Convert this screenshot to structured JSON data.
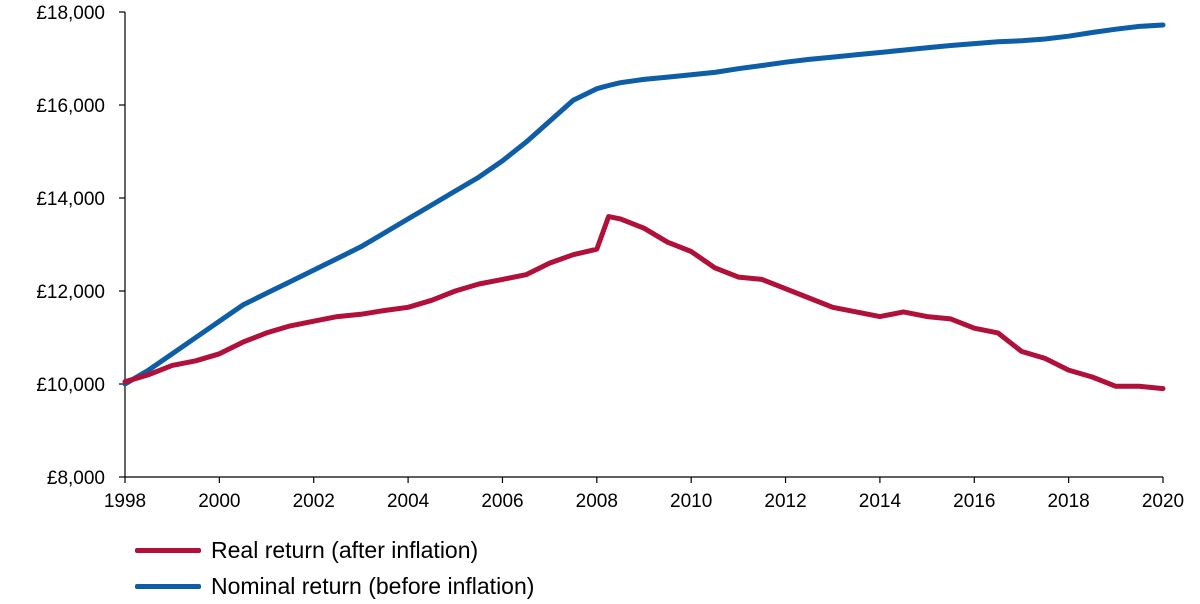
{
  "chart_data": {
    "type": "line",
    "title": "",
    "xlabel": "",
    "ylabel": "",
    "xlim": [
      1998,
      2020
    ],
    "ylim": [
      8000,
      18000
    ],
    "grid": false,
    "legend_position": "bottom-left",
    "x_ticks": [
      "1998",
      "2000",
      "2002",
      "2004",
      "2006",
      "2008",
      "2010",
      "2012",
      "2014",
      "2016",
      "2018",
      "2020"
    ],
    "y_ticks": [
      "£8,000",
      "£10,000",
      "£12,000",
      "£14,000",
      "£16,000",
      "£18,000"
    ],
    "x_tick_values": [
      1998,
      2000,
      2002,
      2004,
      2006,
      2008,
      2010,
      2012,
      2014,
      2016,
      2018,
      2020
    ],
    "y_tick_values": [
      8000,
      10000,
      12000,
      14000,
      16000,
      18000
    ],
    "series": [
      {
        "name": "Real return (after inflation)",
        "color": "#b0103a",
        "x": [
          1998,
          1998.5,
          1999,
          1999.5,
          2000,
          2000.5,
          2001,
          2001.5,
          2002,
          2002.5,
          2003,
          2003.5,
          2004,
          2004.5,
          2005,
          2005.5,
          2006,
          2006.5,
          2007,
          2007.5,
          2008,
          2008.25,
          2008.5,
          2008.75,
          2009,
          2009.5,
          2010,
          2010.5,
          2011,
          2011.5,
          2012,
          2012.5,
          2013,
          2013.5,
          2014,
          2014.5,
          2015,
          2015.5,
          2016,
          2016.5,
          2017,
          2017.5,
          2018,
          2018.5,
          2019,
          2019.5,
          2020
        ],
        "values": [
          10050,
          10200,
          10400,
          10500,
          10650,
          10900,
          11100,
          11250,
          11350,
          11450,
          11500,
          11580,
          11650,
          11800,
          12000,
          12150,
          12250,
          12350,
          12600,
          12780,
          12900,
          13600,
          13550,
          13450,
          13350,
          13050,
          12850,
          12500,
          12300,
          12250,
          12050,
          11850,
          11650,
          11550,
          11450,
          11550,
          11450,
          11400,
          11200,
          11100,
          10700,
          10550,
          10300,
          10150,
          9950,
          9950,
          9900
        ]
      },
      {
        "name": "Nominal return (before inflation)",
        "color": "#0d5ea6",
        "x": [
          1998,
          1998.5,
          1999,
          1999.5,
          2000,
          2000.5,
          2001,
          2001.5,
          2002,
          2002.5,
          2003,
          2003.5,
          2004,
          2004.5,
          2005,
          2005.5,
          2006,
          2006.5,
          2007,
          2007.5,
          2008,
          2008.25,
          2008.5,
          2009,
          2009.5,
          2010,
          2010.5,
          2011,
          2011.5,
          2012,
          2012.5,
          2013,
          2013.5,
          2014,
          2014.5,
          2015,
          2015.5,
          2016,
          2016.5,
          2017,
          2017.5,
          2018,
          2018.5,
          2019,
          2019.5,
          2020
        ],
        "values": [
          10000,
          10300,
          10650,
          11000,
          11350,
          11700,
          11950,
          12200,
          12450,
          12700,
          12950,
          13250,
          13550,
          13850,
          14150,
          14450,
          14800,
          15200,
          15650,
          16100,
          16350,
          16420,
          16480,
          16550,
          16600,
          16650,
          16700,
          16780,
          16850,
          16920,
          16980,
          17030,
          17080,
          17130,
          17180,
          17230,
          17280,
          17320,
          17360,
          17380,
          17420,
          17480,
          17560,
          17630,
          17690,
          17720
        ]
      }
    ]
  }
}
